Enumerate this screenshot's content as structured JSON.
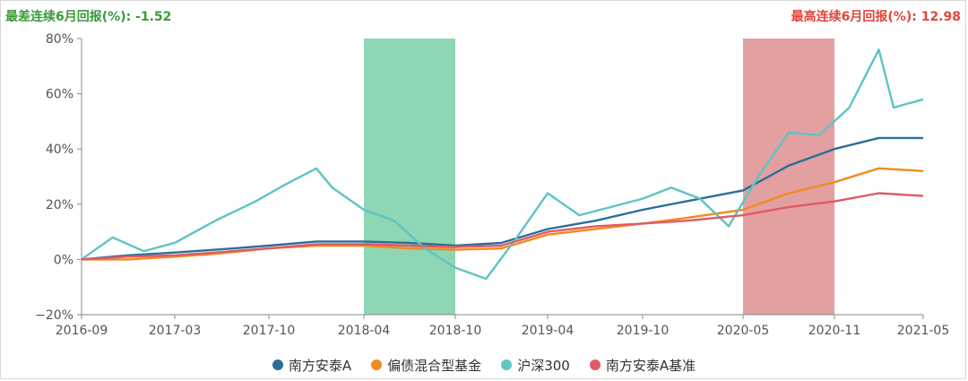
{
  "header": {
    "worst_label": "最差连续6月回报(%):",
    "worst_value": "-1.52",
    "best_label": "最高连续6月回报(%):",
    "best_value": "12.98"
  },
  "colors": {
    "worst_band": "#8fd6b4",
    "best_band": "#e3a0a0",
    "axis": "#888888",
    "grid": "#eeeeee"
  },
  "chart_data": {
    "type": "line",
    "title": "",
    "xlabel": "",
    "ylabel": "",
    "x_ticks": [
      "2016-09",
      "2017-03",
      "2017-10",
      "2018-04",
      "2018-10",
      "2019-04",
      "2019-10",
      "2020-05",
      "2020-11",
      "2021-05"
    ],
    "y_ticks": [
      "80%",
      "60%",
      "40%",
      "20%",
      "0%",
      "−20%"
    ],
    "ylim": [
      -20,
      80
    ],
    "y_unit": "%",
    "grid": false,
    "legend_position": "bottom",
    "bands": [
      {
        "kind": "worst_6m",
        "from": "2018-04",
        "to": "2018-10",
        "color": "#8fd6b4"
      },
      {
        "kind": "best_6m",
        "from": "2020-05",
        "to": "2020-11",
        "color": "#e3a0a0"
      }
    ],
    "series": [
      {
        "name": "南方安泰A",
        "color": "#2a6f9a",
        "x": [
          "2016-09",
          "2016-12",
          "2017-03",
          "2017-06",
          "2017-10",
          "2018-01",
          "2018-04",
          "2018-07",
          "2018-10",
          "2019-01",
          "2019-04",
          "2019-07",
          "2019-10",
          "2020-01",
          "2020-05",
          "2020-08",
          "2020-11",
          "2021-02",
          "2021-05"
        ],
        "values": [
          0,
          1.5,
          2.5,
          3.5,
          5,
          6.5,
          6.5,
          6,
          5,
          6,
          11,
          14,
          18,
          21,
          25,
          34,
          40,
          44,
          44
        ]
      },
      {
        "name": "偏债混合型基金",
        "color": "#f28b1e",
        "x": [
          "2016-09",
          "2016-12",
          "2017-03",
          "2017-06",
          "2017-10",
          "2018-01",
          "2018-04",
          "2018-07",
          "2018-10",
          "2019-01",
          "2019-04",
          "2019-07",
          "2019-10",
          "2020-01",
          "2020-05",
          "2020-08",
          "2020-11",
          "2021-02",
          "2021-05"
        ],
        "values": [
          0,
          0,
          1,
          2,
          4,
          5,
          5,
          4,
          3.5,
          4,
          9,
          11,
          13,
          15,
          18,
          24,
          28,
          33,
          32
        ]
      },
      {
        "name": "沪深300",
        "color": "#5ec4c4",
        "x": [
          "2016-09",
          "2016-11",
          "2017-01",
          "2017-03",
          "2017-06",
          "2017-09",
          "2017-11",
          "2018-01",
          "2018-02",
          "2018-04",
          "2018-06",
          "2018-08",
          "2018-10",
          "2018-12",
          "2019-02",
          "2019-04",
          "2019-06",
          "2019-08",
          "2019-10",
          "2019-12",
          "2020-02",
          "2020-04",
          "2020-06",
          "2020-08",
          "2020-10",
          "2020-12",
          "2021-02",
          "2021-03",
          "2021-05"
        ],
        "values": [
          0,
          8,
          3,
          6,
          14,
          21,
          27,
          33,
          26,
          18,
          14,
          4,
          -3,
          -7,
          8,
          24,
          16,
          19,
          22,
          26,
          22,
          12,
          30,
          46,
          45,
          55,
          76,
          55,
          58
        ]
      },
      {
        "name": "南方安泰A基准",
        "color": "#e05a66",
        "x": [
          "2016-09",
          "2016-12",
          "2017-03",
          "2017-06",
          "2017-10",
          "2018-01",
          "2018-04",
          "2018-07",
          "2018-10",
          "2019-01",
          "2019-04",
          "2019-07",
          "2019-10",
          "2020-01",
          "2020-05",
          "2020-08",
          "2020-11",
          "2021-02",
          "2021-05"
        ],
        "values": [
          0,
          1,
          1.5,
          2.5,
          4,
          5.5,
          5.5,
          5,
          4.5,
          5,
          10,
          12,
          13,
          14,
          16,
          19,
          21,
          24,
          23
        ]
      }
    ]
  }
}
